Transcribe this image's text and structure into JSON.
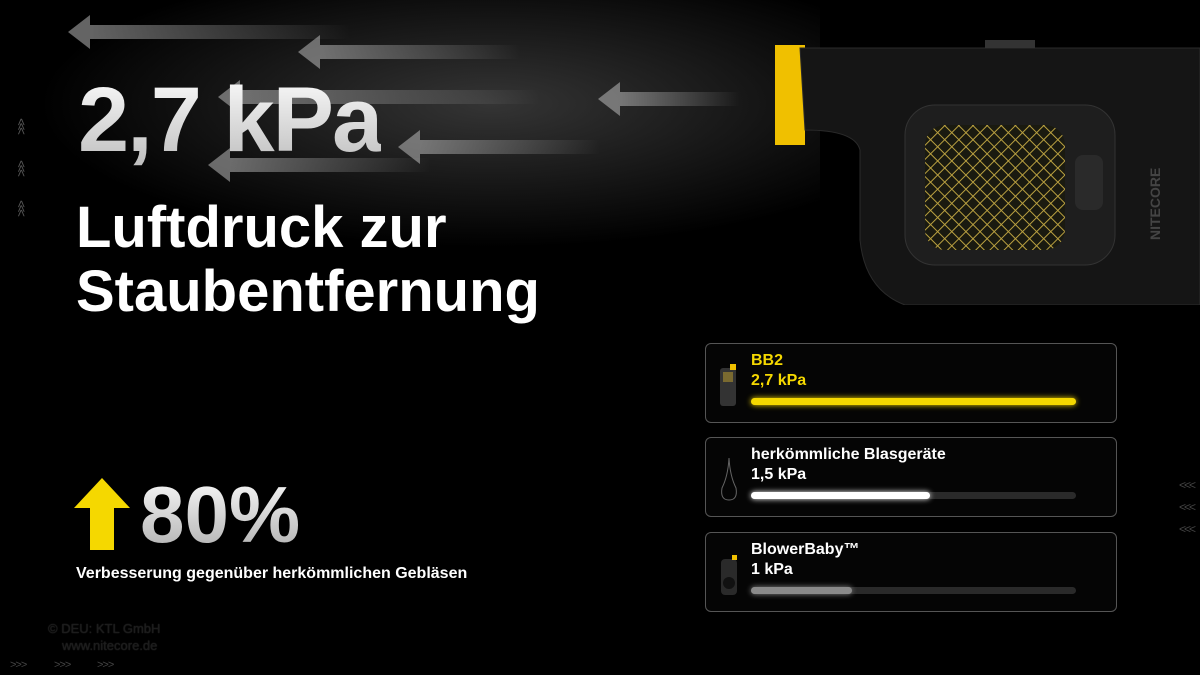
{
  "headline": {
    "value": "2,7 kPa",
    "line1": "Luftdruck zur",
    "line2": "Staubentfernung"
  },
  "improvement": {
    "value": "80%",
    "label": "Verbesserung gegenüber  herkömmlichen Gebläsen",
    "icon": "arrow-up-icon",
    "color": "#f5d800"
  },
  "comparison": [
    {
      "name": "BB2",
      "value": "2,7 kPa",
      "fill": 1.0,
      "color": "#f5d800",
      "text_color": "#f5d800",
      "icon": "bb2-device-icon"
    },
    {
      "name": "herkömmliche Blasgeräte",
      "value": "1,5 kPa",
      "fill": 0.55,
      "color": "#ffffff",
      "text_color": "#ffffff",
      "icon": "blower-bulb-icon"
    },
    {
      "name": "BlowerBaby™",
      "value": "1 kPa",
      "fill": 0.31,
      "color": "#8a8a8a",
      "text_color": "#ffffff",
      "icon": "blowerbaby-device-icon"
    }
  ],
  "watermark": {
    "line1": "© DEU: KTL GmbH",
    "line2": "www.nitecore.de"
  },
  "device_brand": "NITECORE"
}
